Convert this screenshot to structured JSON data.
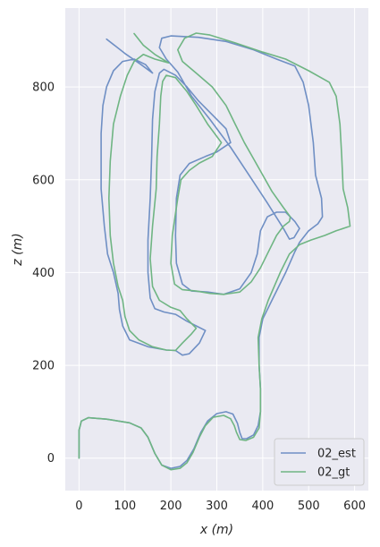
{
  "chart_data": {
    "type": "line",
    "xlabel": "x (m)",
    "ylabel": "z (m)",
    "xlim": [
      -30,
      630
    ],
    "ylim": [
      -70,
      970
    ],
    "xticks": [
      0,
      100,
      200,
      300,
      400,
      500,
      600
    ],
    "yticks": [
      0,
      200,
      400,
      600,
      800
    ],
    "grid": true,
    "legend_position": "bottom-right",
    "series": [
      {
        "name": "02_est",
        "color": "#6f8fc4",
        "points": [
          [
            0,
            0
          ],
          [
            0,
            60
          ],
          [
            5,
            80
          ],
          [
            20,
            87
          ],
          [
            60,
            84
          ],
          [
            110,
            76
          ],
          [
            135,
            65
          ],
          [
            150,
            45
          ],
          [
            165,
            10
          ],
          [
            180,
            -15
          ],
          [
            200,
            -22
          ],
          [
            220,
            -18
          ],
          [
            235,
            -5
          ],
          [
            250,
            20
          ],
          [
            265,
            55
          ],
          [
            280,
            80
          ],
          [
            300,
            96
          ],
          [
            320,
            100
          ],
          [
            335,
            95
          ],
          [
            345,
            75
          ],
          [
            350,
            55
          ],
          [
            355,
            42
          ],
          [
            365,
            42
          ],
          [
            380,
            50
          ],
          [
            390,
            70
          ],
          [
            395,
            100
          ],
          [
            395,
            150
          ],
          [
            392,
            200
          ],
          [
            392,
            260
          ],
          [
            400,
            300
          ],
          [
            420,
            340
          ],
          [
            450,
            400
          ],
          [
            470,
            445
          ],
          [
            480,
            465
          ],
          [
            500,
            490
          ],
          [
            520,
            505
          ],
          [
            530,
            520
          ],
          [
            528,
            560
          ],
          [
            515,
            610
          ],
          [
            510,
            680
          ],
          [
            500,
            760
          ],
          [
            488,
            810
          ],
          [
            470,
            845
          ],
          [
            430,
            860
          ],
          [
            380,
            880
          ],
          [
            320,
            898
          ],
          [
            260,
            907
          ],
          [
            200,
            910
          ],
          [
            180,
            905
          ],
          [
            175,
            885
          ],
          [
            190,
            860
          ],
          [
            215,
            832
          ],
          [
            245,
            780
          ],
          [
            285,
            730
          ],
          [
            330,
            670
          ],
          [
            370,
            610
          ],
          [
            410,
            550
          ],
          [
            445,
            495
          ],
          [
            458,
            472
          ],
          [
            468,
            475
          ],
          [
            480,
            495
          ],
          [
            470,
            510
          ],
          [
            450,
            530
          ],
          [
            430,
            530
          ],
          [
            410,
            520
          ],
          [
            395,
            490
          ],
          [
            388,
            440
          ],
          [
            375,
            400
          ],
          [
            350,
            365
          ],
          [
            315,
            353
          ],
          [
            280,
            358
          ],
          [
            245,
            360
          ],
          [
            225,
            375
          ],
          [
            212,
            420
          ],
          [
            210,
            480
          ],
          [
            212,
            560
          ],
          [
            220,
            610
          ],
          [
            240,
            635
          ],
          [
            275,
            650
          ],
          [
            300,
            660
          ],
          [
            330,
            680
          ],
          [
            320,
            710
          ],
          [
            290,
            740
          ],
          [
            260,
            770
          ],
          [
            235,
            800
          ],
          [
            210,
            825
          ],
          [
            185,
            838
          ],
          [
            175,
            830
          ],
          [
            165,
            790
          ],
          [
            160,
            730
          ],
          [
            158,
            650
          ],
          [
            155,
            560
          ],
          [
            150,
            470
          ],
          [
            150,
            400
          ],
          [
            155,
            345
          ],
          [
            165,
            322
          ],
          [
            185,
            315
          ],
          [
            210,
            310
          ],
          [
            235,
            295
          ],
          [
            255,
            285
          ],
          [
            275,
            275
          ],
          [
            262,
            248
          ],
          [
            240,
            225
          ],
          [
            225,
            222
          ],
          [
            210,
            232
          ],
          [
            190,
            233
          ],
          [
            150,
            240
          ],
          [
            110,
            255
          ],
          [
            95,
            285
          ],
          [
            88,
            320
          ],
          [
            85,
            355
          ],
          [
            75,
            400
          ],
          [
            62,
            440
          ],
          [
            55,
            500
          ],
          [
            48,
            580
          ],
          [
            48,
            650
          ],
          [
            48,
            700
          ],
          [
            52,
            760
          ],
          [
            60,
            800
          ],
          [
            75,
            835
          ],
          [
            95,
            855
          ],
          [
            120,
            860
          ],
          [
            145,
            848
          ],
          [
            160,
            830
          ],
          [
            135,
            848
          ],
          [
            100,
            872
          ],
          [
            60,
            903
          ]
        ]
      },
      {
        "name": "02_gt",
        "color": "#6fb583",
        "points": [
          [
            0,
            0
          ],
          [
            0,
            60
          ],
          [
            5,
            80
          ],
          [
            20,
            87
          ],
          [
            60,
            84
          ],
          [
            110,
            76
          ],
          [
            135,
            65
          ],
          [
            150,
            45
          ],
          [
            165,
            10
          ],
          [
            180,
            -15
          ],
          [
            200,
            -25
          ],
          [
            220,
            -22
          ],
          [
            235,
            -10
          ],
          [
            248,
            12
          ],
          [
            262,
            45
          ],
          [
            275,
            70
          ],
          [
            292,
            88
          ],
          [
            315,
            92
          ],
          [
            330,
            85
          ],
          [
            338,
            70
          ],
          [
            343,
            55
          ],
          [
            350,
            40
          ],
          [
            363,
            38
          ],
          [
            380,
            45
          ],
          [
            392,
            65
          ],
          [
            395,
            100
          ],
          [
            395,
            150
          ],
          [
            392,
            200
          ],
          [
            390,
            260
          ],
          [
            398,
            300
          ],
          [
            412,
            340
          ],
          [
            438,
            400
          ],
          [
            458,
            440
          ],
          [
            480,
            460
          ],
          [
            505,
            470
          ],
          [
            535,
            480
          ],
          [
            560,
            490
          ],
          [
            590,
            500
          ],
          [
            585,
            540
          ],
          [
            575,
            580
          ],
          [
            572,
            650
          ],
          [
            568,
            720
          ],
          [
            560,
            780
          ],
          [
            545,
            810
          ],
          [
            500,
            835
          ],
          [
            450,
            860
          ],
          [
            400,
            875
          ],
          [
            340,
            895
          ],
          [
            285,
            912
          ],
          [
            255,
            916
          ],
          [
            230,
            905
          ],
          [
            215,
            880
          ],
          [
            225,
            855
          ],
          [
            255,
            830
          ],
          [
            290,
            800
          ],
          [
            320,
            760
          ],
          [
            340,
            720
          ],
          [
            360,
            680
          ],
          [
            380,
            645
          ],
          [
            400,
            610
          ],
          [
            420,
            575
          ],
          [
            445,
            540
          ],
          [
            460,
            520
          ],
          [
            458,
            510
          ],
          [
            445,
            500
          ],
          [
            430,
            480
          ],
          [
            410,
            440
          ],
          [
            395,
            410
          ],
          [
            375,
            380
          ],
          [
            350,
            358
          ],
          [
            315,
            353
          ],
          [
            285,
            355
          ],
          [
            255,
            360
          ],
          [
            225,
            363
          ],
          [
            208,
            375
          ],
          [
            200,
            420
          ],
          [
            203,
            480
          ],
          [
            215,
            560
          ],
          [
            222,
            600
          ],
          [
            240,
            620
          ],
          [
            262,
            636
          ],
          [
            290,
            650
          ],
          [
            310,
            680
          ],
          [
            280,
            720
          ],
          [
            255,
            760
          ],
          [
            235,
            790
          ],
          [
            210,
            820
          ],
          [
            190,
            825
          ],
          [
            182,
            812
          ],
          [
            178,
            780
          ],
          [
            175,
            720
          ],
          [
            170,
            650
          ],
          [
            168,
            580
          ],
          [
            160,
            500
          ],
          [
            155,
            430
          ],
          [
            160,
            370
          ],
          [
            175,
            340
          ],
          [
            200,
            325
          ],
          [
            220,
            318
          ],
          [
            235,
            300
          ],
          [
            255,
            280
          ],
          [
            245,
            268
          ],
          [
            225,
            248
          ],
          [
            210,
            232
          ],
          [
            190,
            233
          ],
          [
            160,
            240
          ],
          [
            130,
            255
          ],
          [
            110,
            275
          ],
          [
            100,
            305
          ],
          [
            95,
            340
          ],
          [
            85,
            370
          ],
          [
            75,
            420
          ],
          [
            68,
            480
          ],
          [
            65,
            560
          ],
          [
            68,
            640
          ],
          [
            75,
            720
          ],
          [
            90,
            780
          ],
          [
            105,
            825
          ],
          [
            120,
            855
          ],
          [
            140,
            870
          ],
          [
            165,
            860
          ],
          [
            195,
            852
          ],
          [
            165,
            870
          ],
          [
            140,
            890
          ],
          [
            120,
            915
          ]
        ]
      }
    ]
  }
}
